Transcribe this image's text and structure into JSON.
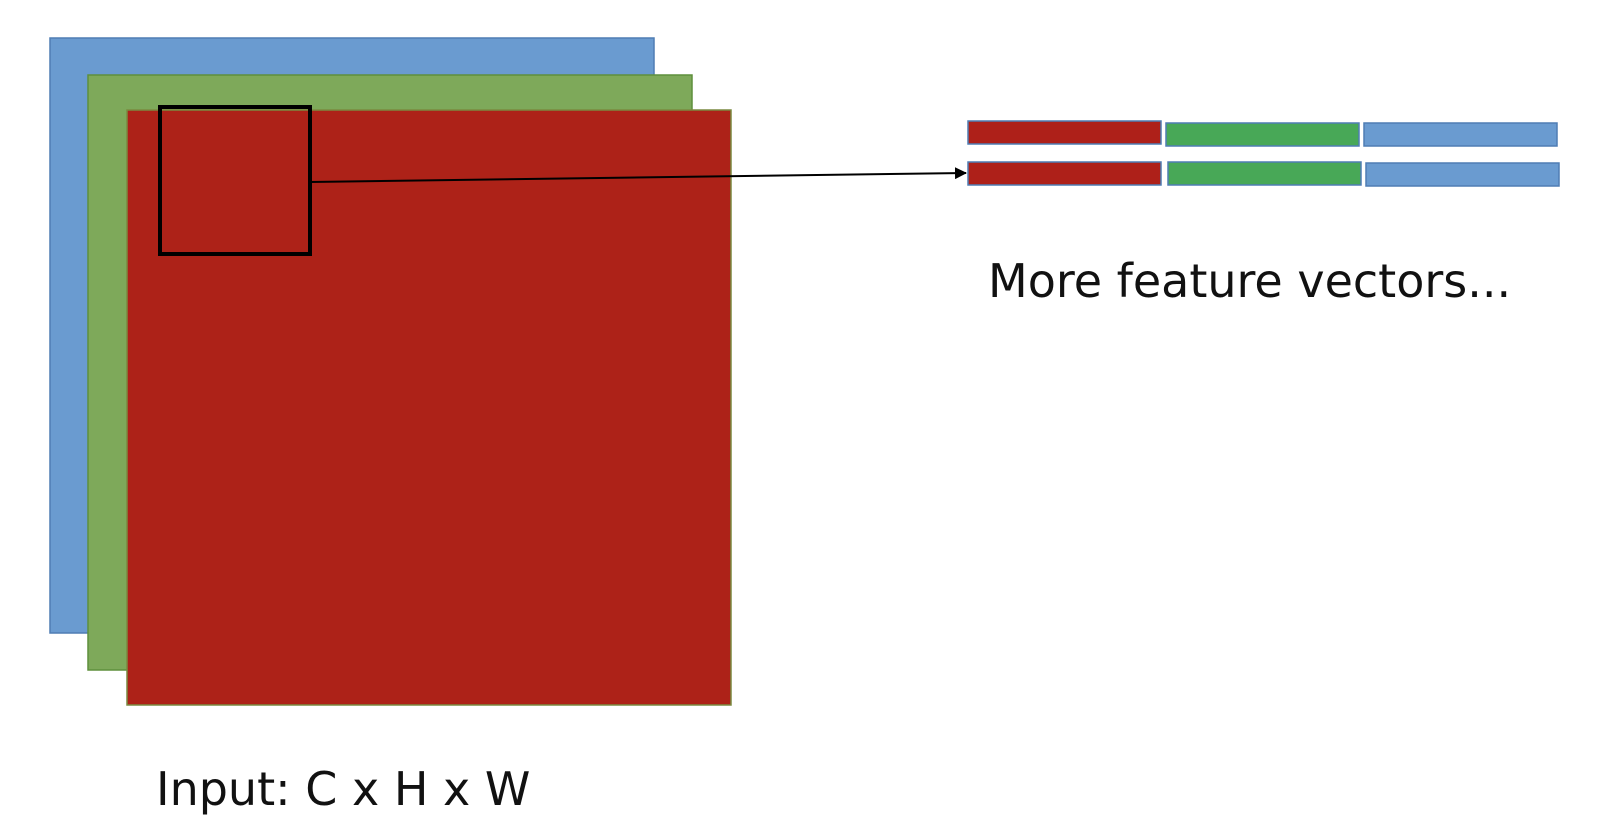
{
  "labels": {
    "feature_vectors": "More feature vectors...",
    "input": "Input: C x H x W"
  },
  "colors": {
    "blue": "#6A9BD0",
    "green": "#7EA95A",
    "red": "#AD2218",
    "vector_red": "#AE2019",
    "vector_green": "#48A857",
    "vector_blue": "#6A9BD0",
    "outline": "#000000",
    "edge_blue": "#4F7DB4",
    "edge_green": "#5E8F3C",
    "edge_red": "#7A8A40"
  },
  "layers": [
    {
      "name": "blue-channel",
      "color": "blue"
    },
    {
      "name": "green-channel",
      "color": "green"
    },
    {
      "name": "red-channel",
      "color": "red"
    }
  ],
  "feature_vector_rows": [
    [
      "vector_red",
      "vector_green",
      "vector_blue"
    ],
    [
      "vector_red",
      "vector_green",
      "vector_blue"
    ]
  ]
}
